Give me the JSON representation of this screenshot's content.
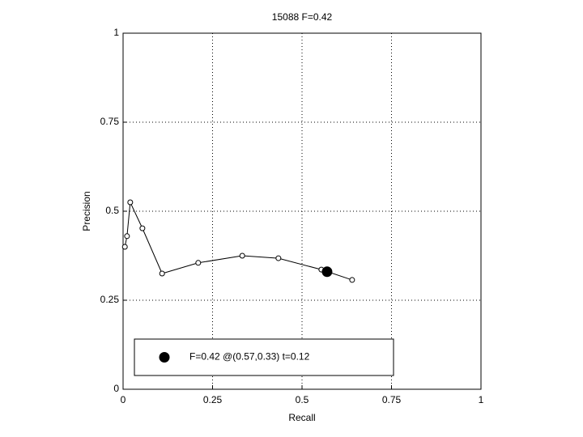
{
  "chart_data": {
    "type": "line",
    "title": "15088 F=0.42",
    "x_label": "Recall",
    "y_label": "Precision",
    "xlim": [
      0,
      1
    ],
    "ylim": [
      0,
      1
    ],
    "xticks": [
      0,
      0.25,
      0.5,
      0.75,
      1
    ],
    "yticks": [
      0,
      0.25,
      0.5,
      0.75,
      1
    ],
    "grid": true,
    "legend_location": "south",
    "series": [
      {
        "color": "#000000",
        "marker": "open-circle",
        "x": [
          0.005,
          0.011,
          0.02,
          0.054,
          0.109,
          0.21,
          0.333,
          0.434,
          0.554,
          0.64
        ],
        "values": [
          0.4,
          0.43,
          0.525,
          0.452,
          0.325,
          0.355,
          0.375,
          0.368,
          0.336,
          0.307
        ]
      },
      {
        "name": "F=0.42 @(0.57,0.33) t=0.12",
        "color": "#000000",
        "marker": "filled-circle",
        "x": [
          0.57
        ],
        "values": [
          0.33
        ]
      }
    ]
  }
}
